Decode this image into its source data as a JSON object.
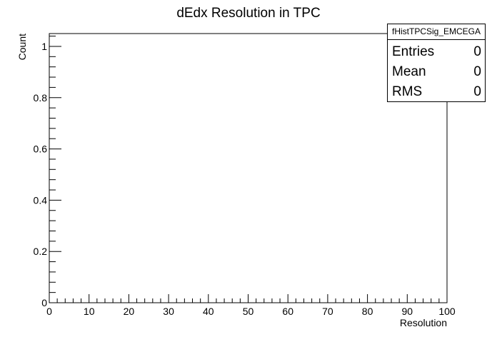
{
  "chart_data": {
    "type": "bar",
    "title": "dEdx Resolution in TPC",
    "xlabel": "Resolution",
    "ylabel": "Count",
    "xlim": [
      0,
      100
    ],
    "ylim": [
      0,
      1.05
    ],
    "xticks": [
      "0",
      "10",
      "20",
      "30",
      "40",
      "50",
      "60",
      "70",
      "80",
      "90",
      "100"
    ],
    "yticks": [
      "0",
      "0.2",
      "0.4",
      "0.6",
      "0.8",
      "1"
    ],
    "values": [],
    "grid": false,
    "stats": {
      "name": "fHistTPCSig_EMCEGA",
      "rows": [
        {
          "label": "Entries",
          "value": "0"
        },
        {
          "label": "Mean",
          "value": "0"
        },
        {
          "label": "RMS",
          "value": "0"
        }
      ]
    }
  }
}
